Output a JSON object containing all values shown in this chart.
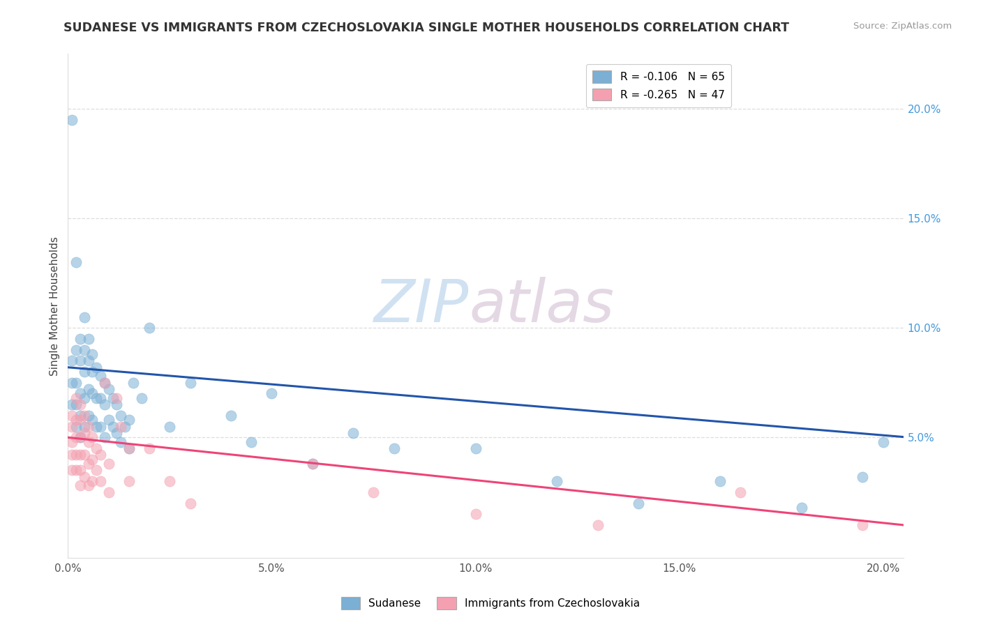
{
  "title": "SUDANESE VS IMMIGRANTS FROM CZECHOSLOVAKIA SINGLE MOTHER HOUSEHOLDS CORRELATION CHART",
  "source": "Source: ZipAtlas.com",
  "ylabel": "Single Mother Households",
  "xlim": [
    0.0,
    0.205
  ],
  "ylim": [
    -0.005,
    0.225
  ],
  "xtick_labels": [
    "0.0%",
    "5.0%",
    "10.0%",
    "15.0%",
    "20.0%"
  ],
  "xtick_vals": [
    0.0,
    0.05,
    0.1,
    0.15,
    0.2
  ],
  "ytick_labels": [
    "5.0%",
    "10.0%",
    "15.0%",
    "20.0%"
  ],
  "ytick_vals": [
    0.05,
    0.1,
    0.15,
    0.2
  ],
  "legend1_label": "R = -0.106   N = 65",
  "legend2_label": "R = -0.265   N = 47",
  "legend_xlabel1": "Sudanese",
  "legend_xlabel2": "Immigrants from Czechoslovakia",
  "color_blue": "#7BAFD4",
  "color_pink": "#F4A0B0",
  "color_trend_blue": "#2255AA",
  "color_trend_pink": "#EE4477",
  "watermark_zip": "ZIP",
  "watermark_atlas": "atlas",
  "blue_trend_intercept": 0.082,
  "blue_trend_slope": -0.155,
  "pink_trend_intercept": 0.05,
  "pink_trend_slope": -0.195,
  "sudanese_x": [
    0.001,
    0.001,
    0.001,
    0.001,
    0.002,
    0.002,
    0.002,
    0.002,
    0.002,
    0.003,
    0.003,
    0.003,
    0.003,
    0.003,
    0.004,
    0.004,
    0.004,
    0.004,
    0.004,
    0.005,
    0.005,
    0.005,
    0.005,
    0.006,
    0.006,
    0.006,
    0.006,
    0.007,
    0.007,
    0.007,
    0.008,
    0.008,
    0.008,
    0.009,
    0.009,
    0.009,
    0.01,
    0.01,
    0.011,
    0.011,
    0.012,
    0.012,
    0.013,
    0.013,
    0.014,
    0.015,
    0.015,
    0.016,
    0.018,
    0.02,
    0.025,
    0.03,
    0.04,
    0.045,
    0.05,
    0.06,
    0.07,
    0.08,
    0.1,
    0.12,
    0.14,
    0.16,
    0.18,
    0.195,
    0.2
  ],
  "sudanese_y": [
    0.195,
    0.085,
    0.075,
    0.065,
    0.13,
    0.09,
    0.075,
    0.065,
    0.055,
    0.095,
    0.085,
    0.07,
    0.06,
    0.05,
    0.105,
    0.09,
    0.08,
    0.068,
    0.055,
    0.095,
    0.085,
    0.072,
    0.06,
    0.088,
    0.08,
    0.07,
    0.058,
    0.082,
    0.068,
    0.055,
    0.078,
    0.068,
    0.055,
    0.075,
    0.065,
    0.05,
    0.072,
    0.058,
    0.068,
    0.055,
    0.065,
    0.052,
    0.06,
    0.048,
    0.055,
    0.058,
    0.045,
    0.075,
    0.068,
    0.1,
    0.055,
    0.075,
    0.06,
    0.048,
    0.07,
    0.038,
    0.052,
    0.045,
    0.045,
    0.03,
    0.02,
    0.03,
    0.018,
    0.032,
    0.048
  ],
  "czech_x": [
    0.001,
    0.001,
    0.001,
    0.001,
    0.001,
    0.002,
    0.002,
    0.002,
    0.002,
    0.002,
    0.003,
    0.003,
    0.003,
    0.003,
    0.003,
    0.003,
    0.004,
    0.004,
    0.004,
    0.004,
    0.005,
    0.005,
    0.005,
    0.005,
    0.006,
    0.006,
    0.006,
    0.007,
    0.007,
    0.008,
    0.008,
    0.009,
    0.01,
    0.01,
    0.012,
    0.013,
    0.015,
    0.015,
    0.02,
    0.025,
    0.03,
    0.06,
    0.075,
    0.1,
    0.13,
    0.165,
    0.195
  ],
  "czech_y": [
    0.06,
    0.055,
    0.048,
    0.042,
    0.035,
    0.068,
    0.058,
    0.05,
    0.042,
    0.035,
    0.065,
    0.058,
    0.05,
    0.042,
    0.035,
    0.028,
    0.06,
    0.052,
    0.042,
    0.032,
    0.055,
    0.048,
    0.038,
    0.028,
    0.05,
    0.04,
    0.03,
    0.045,
    0.035,
    0.042,
    0.03,
    0.075,
    0.038,
    0.025,
    0.068,
    0.055,
    0.045,
    0.03,
    0.045,
    0.03,
    0.02,
    0.038,
    0.025,
    0.015,
    0.01,
    0.025,
    0.01
  ]
}
